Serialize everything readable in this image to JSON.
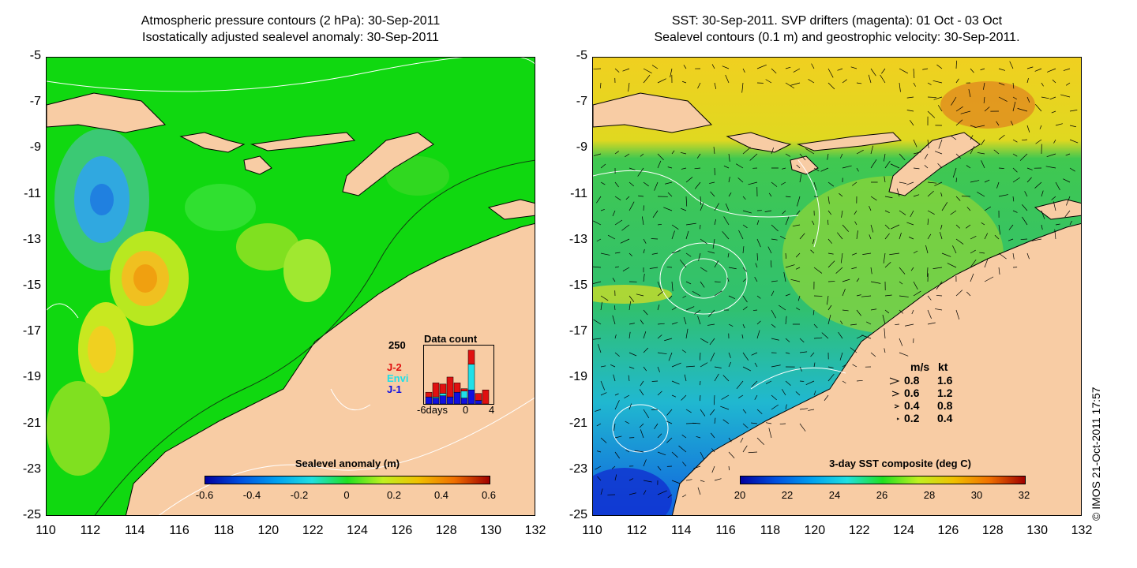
{
  "left_panel": {
    "title_line1": "Atmospheric pressure contours (2 hPa): 30-Sep-2011",
    "title_line2": "Isostatically adjusted sealevel anomaly: 30-Sep-2011",
    "colorbar": {
      "title": "Sealevel anomaly (m)",
      "ticks": [
        "-0.6",
        "-0.4",
        "-0.2",
        "0",
        "0.2",
        "0.4",
        "0.6"
      ]
    },
    "data_count": {
      "title": "Data count",
      "ymax_label": "250",
      "x_left_label": "-6days",
      "x_zero_label": "0",
      "x_right_label": "4",
      "legend": [
        {
          "label": "J-2",
          "color": "#e01010"
        },
        {
          "label": "Envi",
          "color": "#20e0e8"
        },
        {
          "label": "J-1",
          "color": "#1010e0"
        }
      ],
      "bars": [
        {
          "day": -6,
          "j1": 30,
          "envi": 0,
          "j2": 20
        },
        {
          "day": -5,
          "j1": 25,
          "envi": 5,
          "j2": 60
        },
        {
          "day": -4,
          "j1": 35,
          "envi": 10,
          "j2": 40
        },
        {
          "day": -3,
          "j1": 30,
          "envi": 0,
          "j2": 85
        },
        {
          "day": -2,
          "j1": 50,
          "envi": 0,
          "j2": 40
        },
        {
          "day": -1,
          "j1": 25,
          "envi": 30,
          "j2": 10
        },
        {
          "day": 0,
          "j1": 60,
          "envi": 110,
          "j2": 60
        },
        {
          "day": 1,
          "j1": 15,
          "envi": 0,
          "j2": 30
        },
        {
          "day": 2,
          "j1": 0,
          "envi": 0,
          "j2": 60
        }
      ]
    }
  },
  "right_panel": {
    "title_line1": "SST: 30-Sep-2011. SVP drifters (magenta): 01 Oct - 03 Oct",
    "title_line2": "Sealevel contours (0.1 m) and geostrophic velocity: 30-Sep-2011.",
    "colorbar": {
      "title": "3-day SST composite (deg C)",
      "ticks": [
        "20",
        "22",
        "24",
        "26",
        "28",
        "30",
        "32"
      ]
    },
    "velocity_legend": {
      "header_ms": "m/s",
      "header_kt": "kt",
      "rows": [
        {
          "ms": "0.8",
          "kt": "1.6"
        },
        {
          "ms": "0.6",
          "kt": "1.2"
        },
        {
          "ms": "0.4",
          "kt": "0.8"
        },
        {
          "ms": "0.2",
          "kt": "0.4"
        }
      ]
    }
  },
  "axes": {
    "y_ticks": [
      "-5",
      "-7",
      "-9",
      "-11",
      "-13",
      "-15",
      "-17",
      "-19",
      "-21",
      "-23",
      "-25"
    ],
    "x_ticks": [
      "110",
      "112",
      "114",
      "116",
      "118",
      "120",
      "122",
      "124",
      "126",
      "128",
      "130",
      "132"
    ],
    "lat_range": [
      -25,
      -5
    ],
    "lon_range": [
      110,
      132
    ]
  },
  "credit": "© IMOS 21-Oct-2011 17:57",
  "colors": {
    "land": "#f8cca4",
    "sea_anomaly_base": "#10d810",
    "sst_base": "#40d040"
  }
}
